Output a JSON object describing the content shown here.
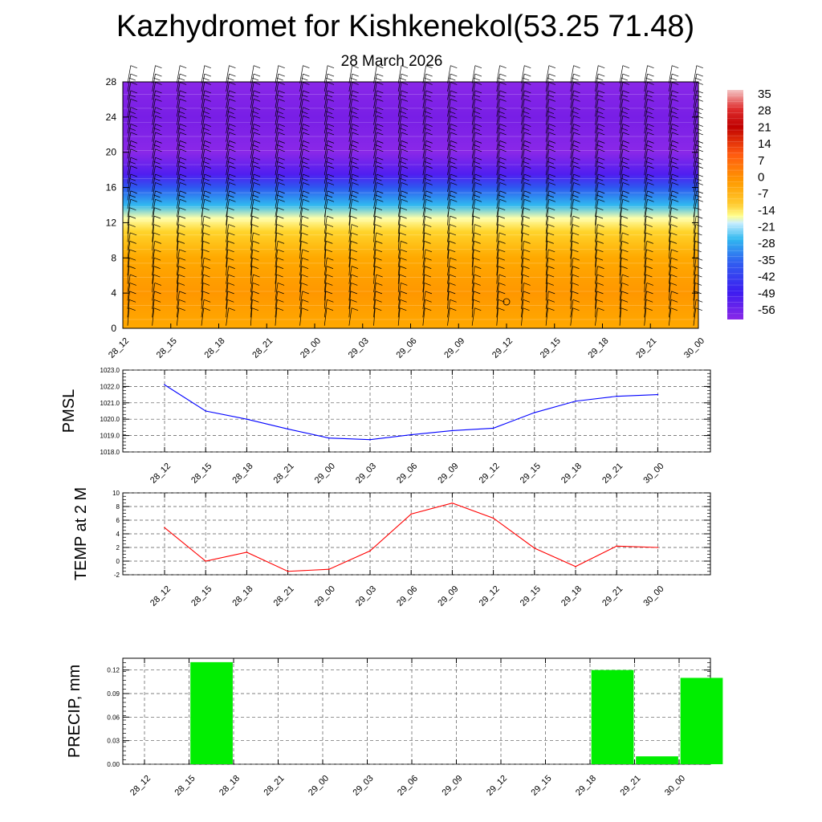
{
  "title": "Kazhydromet for Kishkenekol(53.25 71.48)",
  "subtitle": "28 March 2026",
  "chart_data": [
    {
      "type": "heatmap",
      "name": "Vertical cross-section with wind barbs",
      "x_labels": [
        "28_12",
        "28_15",
        "28_18",
        "28_21",
        "29_00",
        "29_03",
        "29_06",
        "29_09",
        "29_12",
        "29_15",
        "29_18",
        "29_21",
        "30_00"
      ],
      "ylim": [
        0,
        28
      ],
      "yticks": [
        "0",
        "4",
        "8",
        "12",
        "16",
        "20",
        "24",
        "28"
      ],
      "colorbar_labels": [
        "35",
        "28",
        "21",
        "14",
        "7",
        "0",
        "-7",
        "-14",
        "-21",
        "-28",
        "-35",
        "-42",
        "-49",
        "-56"
      ],
      "temperature_by_height": [
        {
          "y": 0,
          "t": 2
        },
        {
          "y": 4,
          "t": 5
        },
        {
          "y": 8,
          "t": 2
        },
        {
          "y": 11,
          "t": -5
        },
        {
          "y": 12.5,
          "t": -14
        },
        {
          "y": 14,
          "t": -28
        },
        {
          "y": 16,
          "t": -40
        },
        {
          "y": 17.5,
          "t": -50
        },
        {
          "y": 20,
          "t": -56
        },
        {
          "y": 24,
          "t": -58
        },
        {
          "y": 28,
          "t": -56
        }
      ]
    },
    {
      "type": "line",
      "ylabel": "PMSL",
      "categories": [
        "28_12",
        "28_15",
        "28_18",
        "28_21",
        "29_00",
        "29_03",
        "29_06",
        "29_09",
        "29_12",
        "29_15",
        "29_18",
        "29_21",
        "30_00"
      ],
      "values": [
        1022.1,
        1020.5,
        1020.0,
        1019.4,
        1018.85,
        1018.75,
        1019.05,
        1019.3,
        1019.45,
        1020.4,
        1021.1,
        1021.4,
        1021.5
      ],
      "ylim": [
        1018.0,
        1023.0
      ],
      "yticks": [
        "1018.0",
        "1019.0",
        "1020.0",
        "1021.0",
        "1022.0",
        "1023.0"
      ],
      "color": "#0000ff"
    },
    {
      "type": "line",
      "ylabel": "TEMP at 2 M",
      "categories": [
        "28_12",
        "28_15",
        "28_18",
        "28_21",
        "29_00",
        "29_03",
        "29_06",
        "29_09",
        "29_12",
        "29_15",
        "29_18",
        "29_21",
        "30_00"
      ],
      "values": [
        4.9,
        0.0,
        1.3,
        -1.5,
        -1.2,
        1.5,
        6.9,
        8.5,
        6.3,
        1.9,
        -0.8,
        2.2,
        2.0
      ],
      "ylim": [
        -2,
        10
      ],
      "yticks": [
        "-2",
        "0",
        "2",
        "4",
        "6",
        "8",
        "10"
      ],
      "color": "#ff0000"
    },
    {
      "type": "bar",
      "ylabel": "PRECIP, mm",
      "categories": [
        "28_12",
        "28_15",
        "28_18",
        "28_21",
        "29_00",
        "29_03",
        "29_06",
        "29_09",
        "29_12",
        "29_15",
        "29_18",
        "29_21",
        "30_00"
      ],
      "values": [
        0,
        0.13,
        0,
        0,
        0,
        0,
        0,
        0,
        0,
        0,
        0.12,
        0.01,
        0.11
      ],
      "ylim": [
        0,
        0.135
      ],
      "yticks": [
        "0.00",
        "0.03",
        "0.06",
        "0.09",
        "0.12"
      ],
      "color": "#00ee00"
    }
  ]
}
